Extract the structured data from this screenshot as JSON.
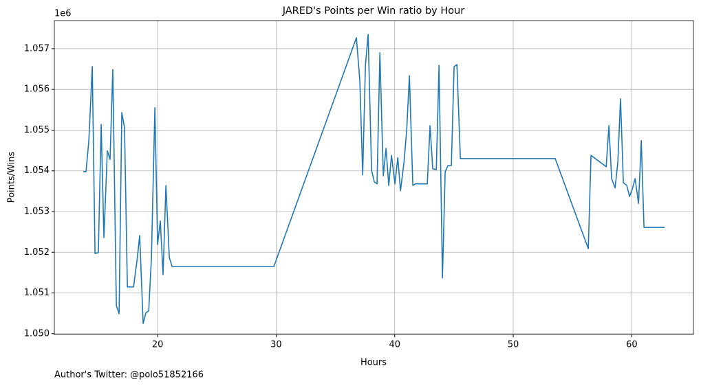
{
  "chart_data": {
    "type": "line",
    "title": "JARED's Points per Win ratio by Hour",
    "x_label": "Hours",
    "y_label": "Points/Wins",
    "y_offset_label": "1e6",
    "footnote": "Author's Twitter: @polo51852166",
    "grid": true,
    "xlim": [
      11.29,
      65.2
    ],
    "xticks": [
      20,
      30,
      40,
      50,
      60
    ],
    "ylim": [
      1049980,
      1057690
    ],
    "yticks": [
      {
        "value": 1050000,
        "label": "1.050"
      },
      {
        "value": 1051000,
        "label": "1.051"
      },
      {
        "value": 1052000,
        "label": "1.052"
      },
      {
        "value": 1053000,
        "label": "1.053"
      },
      {
        "value": 1054000,
        "label": "1.054"
      },
      {
        "value": 1055000,
        "label": "1.055"
      },
      {
        "value": 1056000,
        "label": "1.056"
      },
      {
        "value": 1057000,
        "label": "1.057"
      }
    ],
    "x": [
      13.73,
      13.96,
      14.2,
      14.49,
      14.72,
      15.0,
      15.24,
      15.47,
      15.76,
      15.99,
      16.22,
      16.52,
      16.75,
      16.98,
      17.21,
      17.45,
      17.97,
      18.26,
      18.49,
      18.78,
      19.01,
      19.25,
      19.48,
      19.77,
      20.0,
      20.23,
      20.46,
      20.7,
      20.99,
      21.22,
      29.81,
      36.77,
      37.06,
      37.3,
      37.53,
      37.76,
      38.05,
      38.28,
      38.51,
      38.75,
      39.04,
      39.27,
      39.5,
      39.73,
      40.02,
      40.26,
      40.49,
      40.78,
      41.01,
      41.24,
      41.53,
      41.76,
      42.75,
      42.98,
      43.21,
      43.51,
      43.74,
      44.03,
      44.26,
      44.49,
      44.78,
      45.01,
      45.25,
      45.54,
      53.54,
      56.33,
      56.56,
      57.84,
      58.07,
      58.3,
      58.59,
      58.82,
      59.05,
      59.29,
      59.58,
      59.81,
      60.05,
      60.28,
      60.57,
      60.8,
      61.03,
      62.77
    ],
    "series": [
      {
        "name": "Points/Wins",
        "color": "#1f77b4",
        "values": [
          1053980,
          1053980,
          1054740,
          1056560,
          1051970,
          1051990,
          1055140,
          1052360,
          1054490,
          1054280,
          1056490,
          1050690,
          1050490,
          1055430,
          1055060,
          1051150,
          1051150,
          1051790,
          1052410,
          1050250,
          1050510,
          1050560,
          1051870,
          1055550,
          1052190,
          1052770,
          1051450,
          1053640,
          1051870,
          1051650,
          1051650,
          1057270,
          1056210,
          1053900,
          1056590,
          1057350,
          1054010,
          1053730,
          1053680,
          1056900,
          1053880,
          1054550,
          1053640,
          1054380,
          1053680,
          1054320,
          1053510,
          1054200,
          1054990,
          1056340,
          1053640,
          1053680,
          1053680,
          1055110,
          1054050,
          1054030,
          1056590,
          1051370,
          1053980,
          1054130,
          1054130,
          1056560,
          1056610,
          1054300,
          1054300,
          1052090,
          1054380,
          1054100,
          1055110,
          1053810,
          1053580,
          1054200,
          1055770,
          1053710,
          1053640,
          1053370,
          1053560,
          1053810,
          1053200,
          1054740,
          1052610,
          1052610
        ]
      }
    ]
  }
}
